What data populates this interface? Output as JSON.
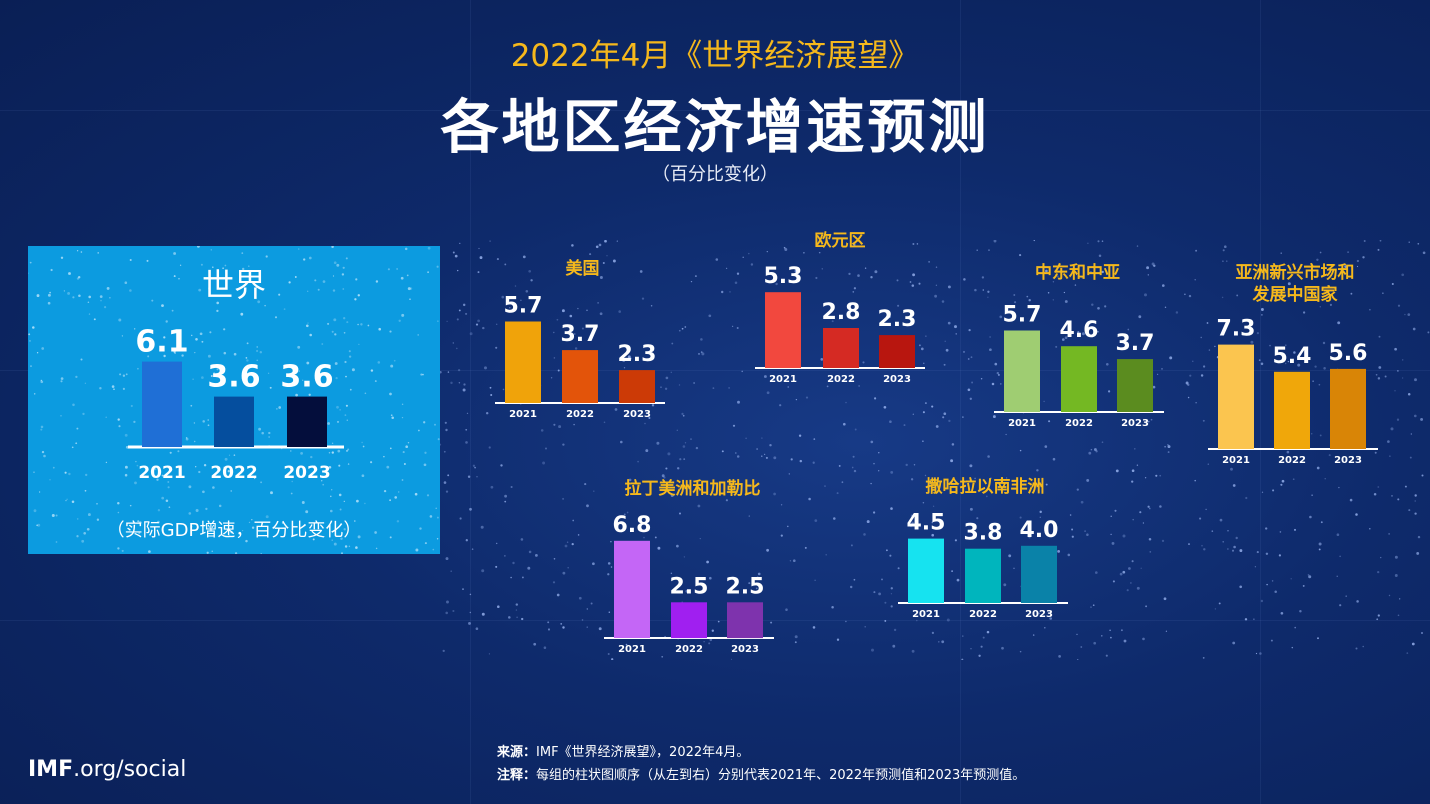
{
  "header": {
    "super_title": "2022年4月《世界经济展望》",
    "title": "各地区经济增速预测",
    "subtitle": "（百分比变化）"
  },
  "world": {
    "title": "世界",
    "note": "（实际GDP增速，百分比变化）"
  },
  "footer": {
    "source_label": "来源：",
    "source_text": "IMF《世界经济展望》，2022年4月。",
    "note_label": "注释：",
    "note_text": "每组的柱状图顺序（从左到右）分别代表2021年、2022年预测值和2023年预测值。",
    "logo_bold": "IMF",
    "logo_rest": ".org/social"
  },
  "chart_data": [
    {
      "type": "bar",
      "title": "世界",
      "categories": [
        "2021",
        "2022",
        "2023"
      ],
      "values": [
        6.1,
        3.6,
        3.6
      ],
      "colors": [
        "#1f6fd6",
        "#054e9e",
        "#040e3c"
      ]
    },
    {
      "type": "bar",
      "title": "美国",
      "categories": [
        "2021",
        "2022",
        "2023"
      ],
      "values": [
        5.7,
        3.7,
        2.3
      ],
      "colors": [
        "#f0a30a",
        "#e3540a",
        "#cc3a06"
      ]
    },
    {
      "type": "bar",
      "title": "欧元区",
      "categories": [
        "2021",
        "2022",
        "2023"
      ],
      "values": [
        5.3,
        2.8,
        2.3
      ],
      "colors": [
        "#f2483e",
        "#d52a23",
        "#b8160f"
      ]
    },
    {
      "type": "bar",
      "title": "中东和中亚",
      "categories": [
        "2021",
        "2022",
        "2023"
      ],
      "values": [
        5.7,
        4.6,
        3.7
      ],
      "colors": [
        "#9fcd72",
        "#74b823",
        "#5b8c1f"
      ]
    },
    {
      "type": "bar",
      "title": "亚洲新兴市场和发展中国家",
      "title_lines": [
        "亚洲新兴市场和",
        "发展中国家"
      ],
      "categories": [
        "2021",
        "2022",
        "2023"
      ],
      "values": [
        7.3,
        5.4,
        5.6
      ],
      "colors": [
        "#fbc54f",
        "#f0a70a",
        "#d98506"
      ]
    },
    {
      "type": "bar",
      "title": "拉丁美洲和加勒比",
      "categories": [
        "2021",
        "2022",
        "2023"
      ],
      "values": [
        6.8,
        2.5,
        2.5
      ],
      "colors": [
        "#c466f6",
        "#a01ff0",
        "#7e33ad"
      ]
    },
    {
      "type": "bar",
      "title": "撒哈拉以南非洲",
      "categories": [
        "2021",
        "2022",
        "2023"
      ],
      "values": [
        4.5,
        3.8,
        4.0
      ],
      "colors": [
        "#16e3f0",
        "#00b5bd",
        "#0a82a8"
      ]
    }
  ]
}
